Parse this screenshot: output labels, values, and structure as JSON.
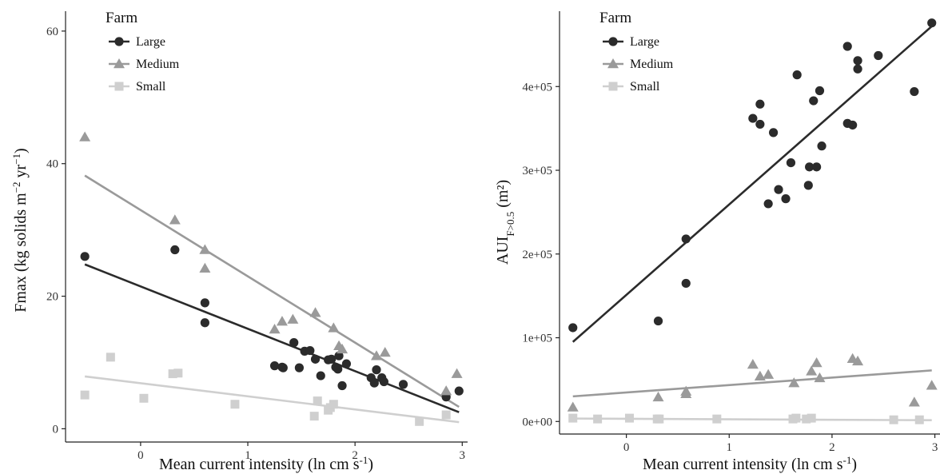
{
  "legend": {
    "title": "Farm",
    "entries": [
      "Large",
      "Medium",
      "Small"
    ]
  },
  "colors": {
    "Large": "#2b2b2b",
    "Medium": "#9a9a9a",
    "Small": "#cfcfcf"
  },
  "chart_data": [
    {
      "type": "scatter",
      "title": "",
      "xlabel": "Mean current intensity (ln cm s^-1)",
      "ylabel": "Fmax (kg solids m^-2 yr^-1)",
      "xlim": [
        -0.7,
        3.05
      ],
      "ylim": [
        -2,
        63
      ],
      "xticks": [
        0,
        1,
        2,
        3
      ],
      "yticks": [
        0,
        20,
        40,
        60
      ],
      "ytick_labels": [
        "0",
        "20",
        "40",
        "60"
      ],
      "grid": false,
      "legend_position": "top-left",
      "series": [
        {
          "name": "Large",
          "marker": "circle",
          "points": [
            [
              -0.52,
              26
            ],
            [
              0.32,
              27
            ],
            [
              0.6,
              19
            ],
            [
              0.6,
              16
            ],
            [
              1.25,
              9.5
            ],
            [
              1.32,
              9.3
            ],
            [
              1.33,
              9.2
            ],
            [
              1.43,
              13
            ],
            [
              1.48,
              9.2
            ],
            [
              1.53,
              11.7
            ],
            [
              1.58,
              11.8
            ],
            [
              1.63,
              10.5
            ],
            [
              1.68,
              8
            ],
            [
              1.75,
              10.4
            ],
            [
              1.78,
              10.5
            ],
            [
              1.82,
              9.3
            ],
            [
              1.84,
              9
            ],
            [
              1.85,
              11
            ],
            [
              1.88,
              6.5
            ],
            [
              1.92,
              9.8
            ],
            [
              2.15,
              7.7
            ],
            [
              2.18,
              6.9
            ],
            [
              2.2,
              8.9
            ],
            [
              2.25,
              7.7
            ],
            [
              2.27,
              7.1
            ],
            [
              2.45,
              6.7
            ],
            [
              2.85,
              4.8
            ],
            [
              2.97,
              5.7
            ]
          ],
          "fit": [
            [
              -0.52,
              24.8
            ],
            [
              2.97,
              2.5
            ]
          ]
        },
        {
          "name": "Medium",
          "marker": "triangle",
          "points": [
            [
              -0.52,
              44
            ],
            [
              0.32,
              31.5
            ],
            [
              0.6,
              27
            ],
            [
              0.6,
              24.2
            ],
            [
              1.25,
              15
            ],
            [
              1.32,
              16.2
            ],
            [
              1.42,
              16.5
            ],
            [
              1.63,
              17.5
            ],
            [
              1.8,
              15.2
            ],
            [
              1.85,
              12.5
            ],
            [
              1.88,
              12
            ],
            [
              2.2,
              11
            ],
            [
              2.28,
              11.5
            ],
            [
              2.85,
              5.7
            ],
            [
              2.95,
              8.3
            ]
          ],
          "fit": [
            [
              -0.52,
              38.2
            ],
            [
              2.97,
              3.3
            ]
          ]
        },
        {
          "name": "Small",
          "marker": "square",
          "points": [
            [
              -0.52,
              5.1
            ],
            [
              -0.28,
              10.8
            ],
            [
              0.03,
              4.6
            ],
            [
              0.3,
              8.3
            ],
            [
              0.35,
              8.4
            ],
            [
              0.88,
              3.7
            ],
            [
              1.62,
              1.9
            ],
            [
              1.65,
              4.2
            ],
            [
              1.75,
              2.8
            ],
            [
              1.77,
              3.2
            ],
            [
              1.8,
              3.7
            ],
            [
              2.6,
              1.1
            ],
            [
              2.85,
              2.1
            ]
          ],
          "fit": [
            [
              -0.52,
              7.9
            ],
            [
              2.97,
              1.0
            ]
          ]
        }
      ]
    },
    {
      "type": "scatter",
      "title": "",
      "xlabel": "Mean current intensity (ln cm s^-1)",
      "ylabel": "AUI F>0.5 (m²)",
      "xlim": [
        -0.65,
        3.05
      ],
      "ylim": [
        -15000,
        490000
      ],
      "xticks": [
        0,
        1,
        2,
        3
      ],
      "yticks": [
        0,
        100000,
        200000,
        300000,
        400000
      ],
      "ytick_labels": [
        "0e+00",
        "1e+05",
        "2e+05",
        "3e+05",
        "4e+05"
      ],
      "grid": false,
      "legend_position": "top-left",
      "series": [
        {
          "name": "Large",
          "marker": "circle",
          "points": [
            [
              -0.52,
              112000
            ],
            [
              0.31,
              120000
            ],
            [
              0.58,
              218000
            ],
            [
              0.58,
              165000
            ],
            [
              1.23,
              362000
            ],
            [
              1.3,
              379000
            ],
            [
              1.3,
              355000
            ],
            [
              1.38,
              260000
            ],
            [
              1.43,
              345000
            ],
            [
              1.48,
              277000
            ],
            [
              1.55,
              266000
            ],
            [
              1.6,
              309000
            ],
            [
              1.66,
              414000
            ],
            [
              1.77,
              282000
            ],
            [
              1.78,
              304000
            ],
            [
              1.82,
              383000
            ],
            [
              1.85,
              304000
            ],
            [
              1.88,
              395000
            ],
            [
              1.9,
              329000
            ],
            [
              2.15,
              356000
            ],
            [
              2.15,
              448000
            ],
            [
              2.2,
              354000
            ],
            [
              2.25,
              421000
            ],
            [
              2.25,
              431000
            ],
            [
              2.45,
              437000
            ],
            [
              2.8,
              394000
            ],
            [
              2.97,
              476000
            ]
          ],
          "fit": [
            [
              -0.52,
              95000
            ],
            [
              2.97,
              472000
            ]
          ]
        },
        {
          "name": "Medium",
          "marker": "triangle",
          "points": [
            [
              -0.52,
              17000
            ],
            [
              0.31,
              29000
            ],
            [
              0.58,
              33000
            ],
            [
              0.58,
              36000
            ],
            [
              1.23,
              68000
            ],
            [
              1.3,
              54000
            ],
            [
              1.38,
              56000
            ],
            [
              1.63,
              46000
            ],
            [
              1.8,
              60000
            ],
            [
              1.85,
              70000
            ],
            [
              1.88,
              52000
            ],
            [
              2.2,
              75000
            ],
            [
              2.25,
              72000
            ],
            [
              2.8,
              23000
            ],
            [
              2.97,
              43000
            ]
          ],
          "fit": [
            [
              -0.52,
              30000
            ],
            [
              2.97,
              61000
            ]
          ]
        },
        {
          "name": "Small",
          "marker": "square",
          "points": [
            [
              -0.52,
              4000
            ],
            [
              -0.28,
              3000
            ],
            [
              0.03,
              4000
            ],
            [
              0.3,
              3000
            ],
            [
              0.32,
              3000
            ],
            [
              0.88,
              3000
            ],
            [
              1.62,
              3000
            ],
            [
              1.65,
              4000
            ],
            [
              1.75,
              3000
            ],
            [
              1.8,
              4000
            ],
            [
              2.6,
              2000
            ],
            [
              2.85,
              2000
            ]
          ],
          "fit": [
            [
              -0.52,
              3500
            ],
            [
              2.97,
              1500
            ]
          ]
        }
      ]
    }
  ]
}
